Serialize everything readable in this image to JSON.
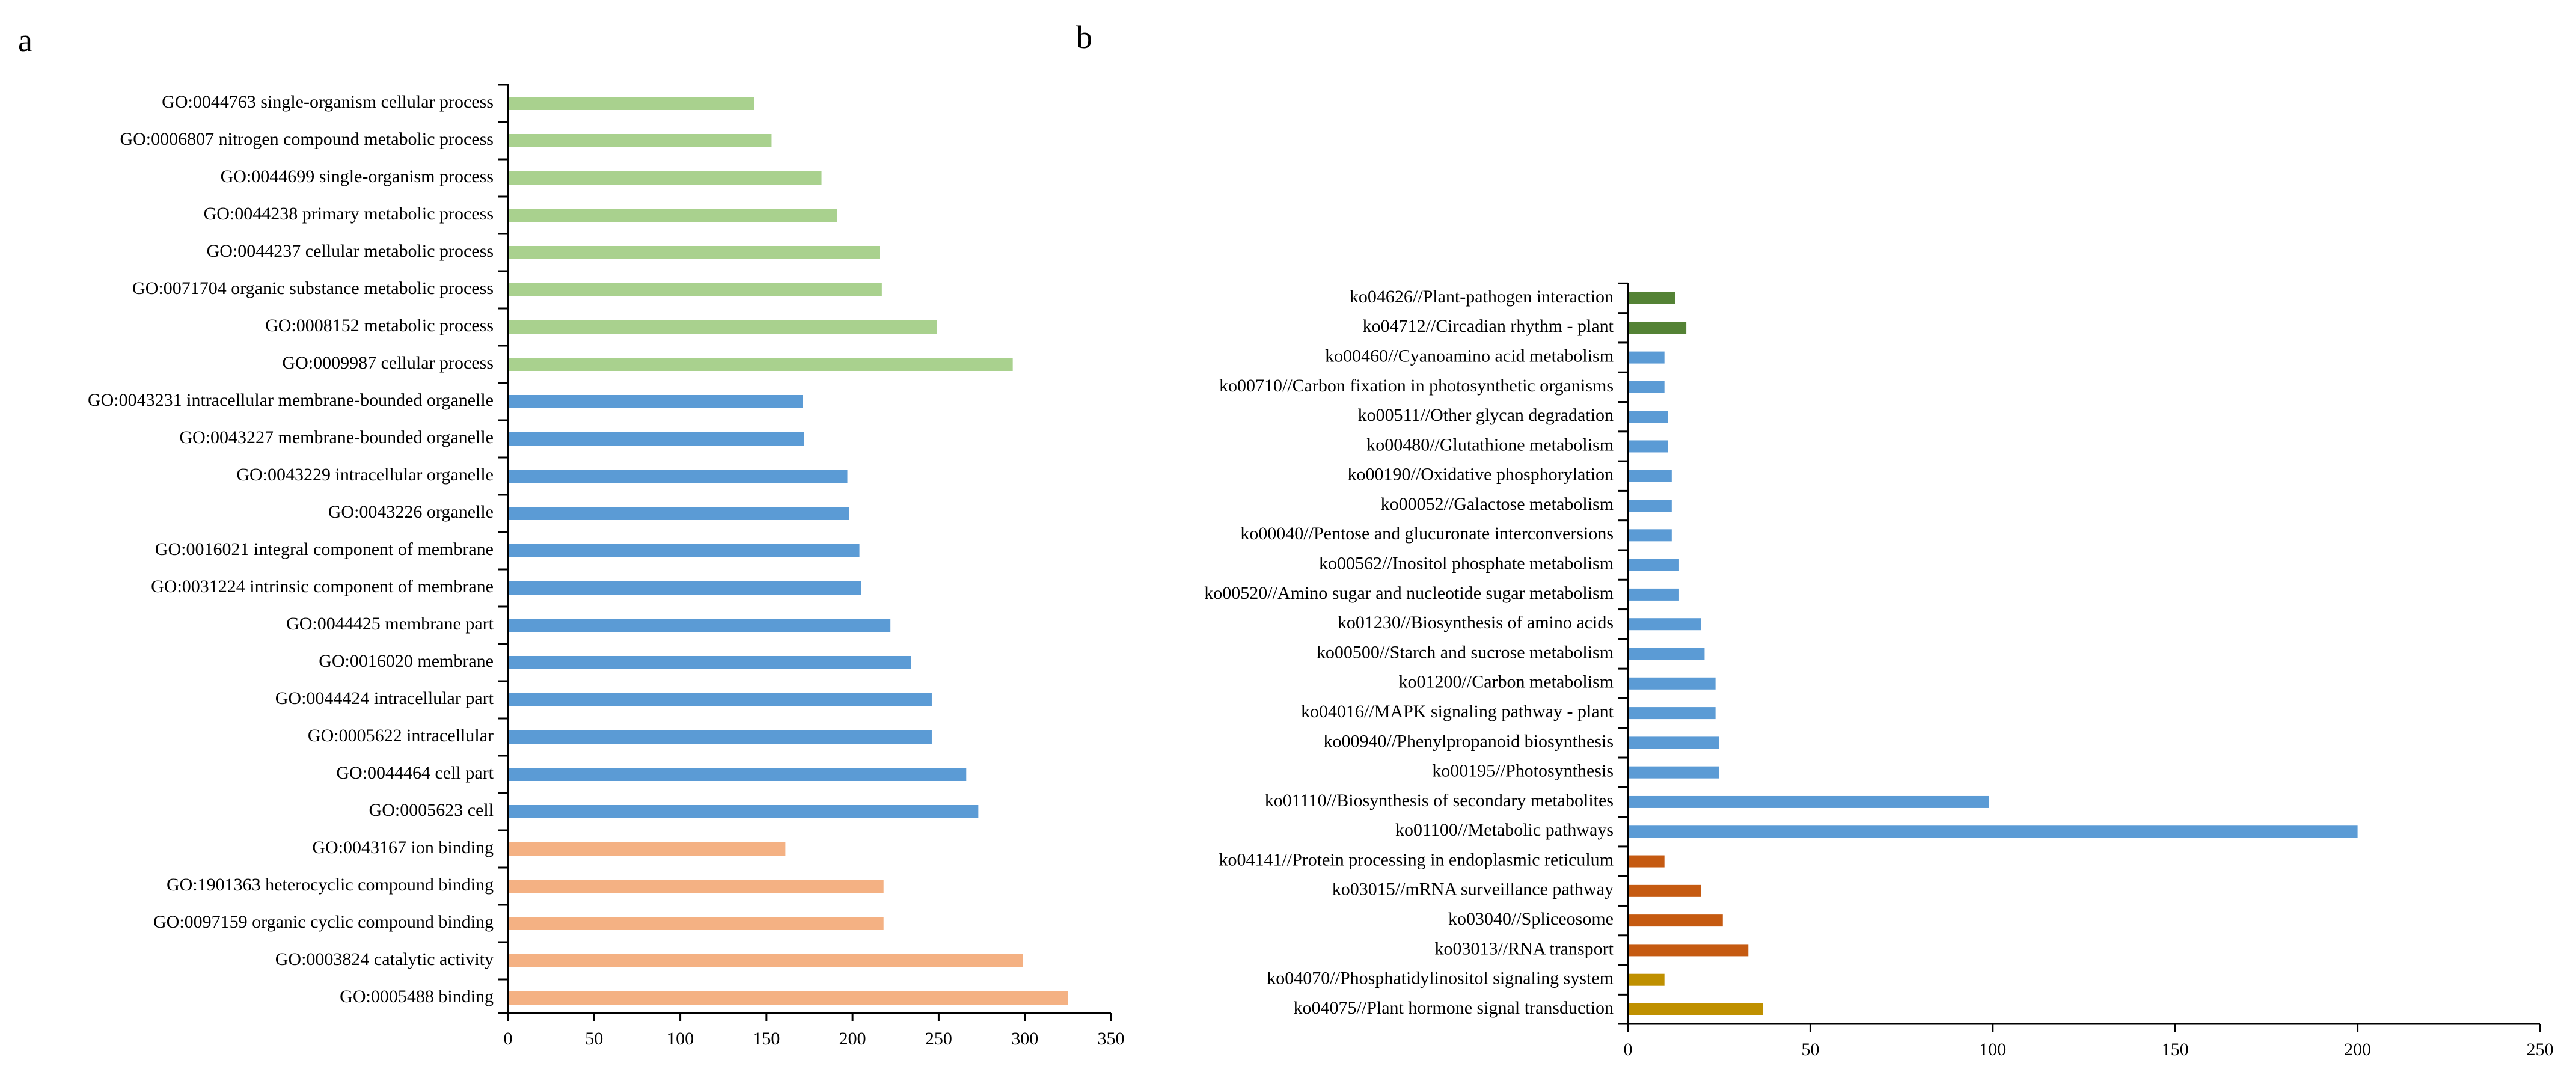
{
  "figure": {
    "panels": [
      "a",
      "b"
    ],
    "colors": {
      "go_biological_process": "#a9d18e",
      "go_cellular_component": "#5b9bd5",
      "go_molecular_function": "#f4b183",
      "kegg_organismal_systems": "#548235",
      "kegg_metabolism": "#5b9bd5",
      "kegg_genetic_information_processing": "#c55a11",
      "kegg_environmental_information_processing": "#bf9000"
    }
  },
  "chart_data": [
    {
      "type": "bar",
      "orientation": "horizontal",
      "panel_label": "a",
      "xlim": [
        0,
        350
      ],
      "xticks": [
        0,
        50,
        100,
        150,
        200,
        250,
        300,
        350
      ],
      "grid": false,
      "legend": "none",
      "categories": [
        "GO:0044763 single-organism cellular process",
        "GO:0006807 nitrogen compound metabolic process",
        "GO:0044699 single-organism process",
        "GO:0044238 primary metabolic process",
        "GO:0044237 cellular metabolic process",
        "GO:0071704 organic substance metabolic process",
        "GO:0008152 metabolic process",
        "GO:0009987 cellular process",
        "GO:0043231 intracellular membrane-bounded organelle",
        "GO:0043227 membrane-bounded organelle",
        "GO:0043229 intracellular organelle",
        "GO:0043226 organelle",
        "GO:0016021 integral component of membrane",
        "GO:0031224 intrinsic component of membrane",
        "GO:0044425 membrane part",
        "GO:0016020 membrane",
        "GO:0044424 intracellular part",
        "GO:0005622 intracellular",
        "GO:0044464 cell part",
        "GO:0005623 cell",
        "GO:0043167 ion binding",
        "GO:1901363 heterocyclic compound binding",
        "GO:0097159 organic cyclic compound binding",
        "GO:0003824 catalytic activity",
        "GO:0005488 binding"
      ],
      "values": [
        143,
        153,
        182,
        191,
        216,
        217,
        249,
        293,
        171,
        172,
        197,
        198,
        204,
        205,
        222,
        234,
        246,
        246,
        266,
        273,
        161,
        218,
        218,
        299,
        325
      ],
      "groups": [
        "go_biological_process",
        "go_biological_process",
        "go_biological_process",
        "go_biological_process",
        "go_biological_process",
        "go_biological_process",
        "go_biological_process",
        "go_biological_process",
        "go_cellular_component",
        "go_cellular_component",
        "go_cellular_component",
        "go_cellular_component",
        "go_cellular_component",
        "go_cellular_component",
        "go_cellular_component",
        "go_cellular_component",
        "go_cellular_component",
        "go_cellular_component",
        "go_cellular_component",
        "go_cellular_component",
        "go_molecular_function",
        "go_molecular_function",
        "go_molecular_function",
        "go_molecular_function",
        "go_molecular_function"
      ]
    },
    {
      "type": "bar",
      "orientation": "horizontal",
      "panel_label": "b",
      "xlim": [
        0,
        250
      ],
      "xticks": [
        0,
        50,
        100,
        150,
        200,
        250
      ],
      "grid": false,
      "legend": "none",
      "categories": [
        "ko04626//Plant-pathogen interaction",
        "ko04712//Circadian rhythm - plant",
        "ko00460//Cyanoamino acid metabolism",
        "ko00710//Carbon fixation in photosynthetic organisms",
        "ko00511//Other glycan degradation",
        "ko00480//Glutathione metabolism",
        "ko00190//Oxidative phosphorylation",
        "ko00052//Galactose metabolism",
        "ko00040//Pentose and glucuronate interconversions",
        "ko00562//Inositol phosphate metabolism",
        "ko00520//Amino sugar and nucleotide sugar metabolism",
        "ko01230//Biosynthesis of amino acids",
        "ko00500//Starch and sucrose metabolism",
        "ko01200//Carbon metabolism",
        "ko04016//MAPK signaling pathway - plant",
        "ko00940//Phenylpropanoid biosynthesis",
        "ko00195//Photosynthesis",
        "ko01110//Biosynthesis of secondary metabolites",
        "ko01100//Metabolic pathways",
        "ko04141//Protein processing in endoplasmic reticulum",
        "ko03015//mRNA surveillance pathway",
        "ko03040//Spliceosome",
        "ko03013//RNA transport",
        "ko04070//Phosphatidylinositol signaling system",
        "ko04075//Plant hormone signal transduction"
      ],
      "values": [
        13,
        16,
        10,
        10,
        11,
        11,
        12,
        12,
        12,
        14,
        14,
        20,
        21,
        24,
        24,
        25,
        25,
        99,
        200,
        10,
        20,
        26,
        33,
        10,
        37
      ],
      "groups": [
        "kegg_organismal_systems",
        "kegg_organismal_systems",
        "kegg_metabolism",
        "kegg_metabolism",
        "kegg_metabolism",
        "kegg_metabolism",
        "kegg_metabolism",
        "kegg_metabolism",
        "kegg_metabolism",
        "kegg_metabolism",
        "kegg_metabolism",
        "kegg_metabolism",
        "kegg_metabolism",
        "kegg_metabolism",
        "kegg_metabolism",
        "kegg_metabolism",
        "kegg_metabolism",
        "kegg_metabolism",
        "kegg_metabolism",
        "kegg_genetic_information_processing",
        "kegg_genetic_information_processing",
        "kegg_genetic_information_processing",
        "kegg_genetic_information_processing",
        "kegg_environmental_information_processing",
        "kegg_environmental_information_processing"
      ]
    }
  ]
}
